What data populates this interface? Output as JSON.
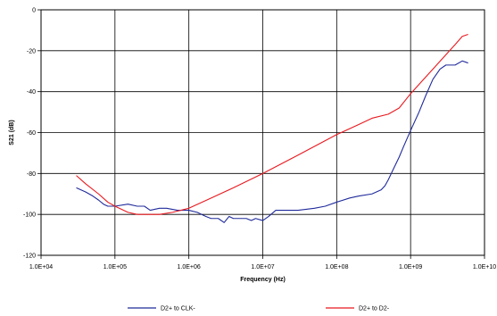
{
  "chart_data": {
    "type": "line",
    "xlabel": "Frequency (Hz)",
    "ylabel": "S21 (dB)",
    "x_scale": "log",
    "xlim": [
      10000,
      10000000000
    ],
    "ylim": [
      -120,
      0
    ],
    "x_ticks": [
      10000,
      100000,
      1000000,
      10000000,
      100000000,
      1000000000,
      10000000000
    ],
    "x_tick_labels": [
      "1.0E+04",
      "1.0E+05",
      "1.0E+06",
      "1.0E+07",
      "1.0E+08",
      "1.0E+09",
      "1.0E+10"
    ],
    "y_ticks": [
      0,
      -20,
      -40,
      -60,
      -80,
      -100,
      -120
    ],
    "y_tick_labels": [
      "0",
      "-20",
      "-40",
      "-60",
      "-80",
      "-100",
      "-120"
    ],
    "grid": true,
    "legend_position": "bottom",
    "series": [
      {
        "name": "D2+ to CLK-",
        "color": "#1f2a9a",
        "points": [
          [
            30000,
            -87
          ],
          [
            40000,
            -89
          ],
          [
            50000,
            -91
          ],
          [
            60000,
            -93
          ],
          [
            70000,
            -95
          ],
          [
            80000,
            -96
          ],
          [
            100000,
            -96
          ],
          [
            150000,
            -95
          ],
          [
            200000,
            -96
          ],
          [
            250000,
            -96
          ],
          [
            300000,
            -98
          ],
          [
            400000,
            -97
          ],
          [
            500000,
            -97
          ],
          [
            700000,
            -98
          ],
          [
            1000000,
            -98
          ],
          [
            1300000,
            -99
          ],
          [
            1700000,
            -101
          ],
          [
            2000000,
            -102
          ],
          [
            2500000,
            -102
          ],
          [
            3000000,
            -104
          ],
          [
            3500000,
            -101
          ],
          [
            4000000,
            -102
          ],
          [
            5000000,
            -102
          ],
          [
            6000000,
            -102
          ],
          [
            7000000,
            -103
          ],
          [
            8000000,
            -102
          ],
          [
            10000000,
            -103
          ],
          [
            12000000,
            -101
          ],
          [
            15000000,
            -98
          ],
          [
            20000000,
            -98
          ],
          [
            30000000,
            -98
          ],
          [
            50000000,
            -97
          ],
          [
            70000000,
            -96
          ],
          [
            100000000,
            -94
          ],
          [
            150000000,
            -92
          ],
          [
            200000000,
            -91
          ],
          [
            300000000,
            -90
          ],
          [
            400000000,
            -88
          ],
          [
            450000000,
            -86
          ],
          [
            500000000,
            -83
          ],
          [
            600000000,
            -77
          ],
          [
            700000000,
            -72
          ],
          [
            800000000,
            -67
          ],
          [
            1000000000,
            -59
          ],
          [
            1300000000,
            -50
          ],
          [
            1600000000,
            -42
          ],
          [
            2000000000,
            -34
          ],
          [
            2500000000,
            -29
          ],
          [
            3000000000,
            -27
          ],
          [
            3500000000,
            -27
          ],
          [
            4000000000,
            -27
          ],
          [
            5000000000,
            -25
          ],
          [
            6000000000,
            -26
          ]
        ]
      },
      {
        "name": "D2+ to D2-",
        "color": "#e8191f",
        "points": [
          [
            30000,
            -81
          ],
          [
            40000,
            -85
          ],
          [
            60000,
            -90
          ],
          [
            80000,
            -94
          ],
          [
            100000,
            -96
          ],
          [
            150000,
            -99
          ],
          [
            200000,
            -100
          ],
          [
            300000,
            -100
          ],
          [
            400000,
            -100
          ],
          [
            600000,
            -99
          ],
          [
            1000000,
            -97
          ],
          [
            2000000,
            -92
          ],
          [
            4000000,
            -87
          ],
          [
            10000000,
            -80
          ],
          [
            30000000,
            -71
          ],
          [
            100000000,
            -61
          ],
          [
            200000000,
            -56
          ],
          [
            300000000,
            -53
          ],
          [
            500000000,
            -51
          ],
          [
            700000000,
            -48
          ],
          [
            1000000000,
            -41
          ],
          [
            1500000000,
            -34
          ],
          [
            2000000000,
            -29
          ],
          [
            3000000000,
            -22
          ],
          [
            4000000000,
            -17
          ],
          [
            5000000000,
            -13
          ],
          [
            6000000000,
            -12
          ]
        ]
      }
    ]
  }
}
